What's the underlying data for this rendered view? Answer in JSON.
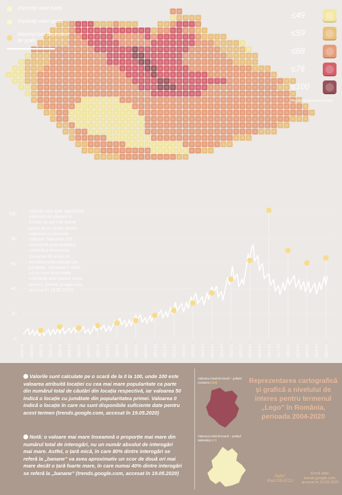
{
  "legend_top": {
    "items": [
      {
        "label": "Explicații valori hartă",
        "color": "#fdf4d0"
      },
      {
        "label": "Explicații valori grafic",
        "color": "#fdf4d0"
      },
      {
        "label": "Maximul lunii decembrie pe grafic",
        "color": "#f7dc8e"
      }
    ]
  },
  "scale": {
    "items": [
      {
        "label": "≤49",
        "color": "#f3e7a3"
      },
      {
        "label": "≤59",
        "color": "#eac181"
      },
      {
        "label": "≤68",
        "color": "#e69e7b"
      },
      {
        "label": "≤76",
        "color": "#d5616d"
      },
      {
        "label": "≤100",
        "color": "#98525a"
      }
    ],
    "caption": "Procentul interesului (valori)"
  },
  "map": {
    "background_color": "#ece9e6",
    "cells": [
      "..........................XX........................",
      "..........................ABBBB.....................",
      "........BBCDDDBBBCBBB...BBCDDDC.....................",
      ".......BBBCDDDDDDDDDDDDBCCDDCCBB....................",
      "......BBBBCCDDDDDCCCCCDCDDDDDDCBBBB.................",
      ".....BBBBBCCCDDDDDCCCCCDDDDDDDCCCBBBBA..............",
      "....CCCCCCCCCCDDDDDDEDDDDDDDDCCCCCBBBBA.............",
      "...ABBBCCCCCCCCCDDDDEEDDDDDDCCCCCCCBBBBB............",
      "..ABBBBCCCCCCCCCDDDDDEEDDDDDCCCCCCCCBBBB............",
      ".AABBBCCCCCCCCCCCCDDDDEEDDDDDCCCCCCCCCCBBB..........",
      "AAABBCCCCCCCCCCCCCCDDDDEDDDDDDDDCCCCCCCCCCB.........",
      ".AABBCCCCCCCCCCCCCCCDDDDEEDDDDDDDDDCCCCCCCCCBB......",
      "..AABCCCCCCCCCCCCCCCCDDDEEEDDDDDCCCCCCCCCCCBB.......",
      "...ABCCCCCCCCCCCCCCCCCCDDDDDDDDCCCCCCCCCCCCCCB......",
      "....BCCCCCCCAAAAAACCCCCCCCCCCCCCCCCCCCCCCCCCCCB.....",
      ".....BCCCCCAAAAAAAAACCCCCCCCCCCCCCCCCCCCCCCCCCCB....",
      "......BBCCAAAAAAAAAAACCCCCCCCCCCCCCCCCCCCCCCCCCCB...",
      ".......BCCAAAAAAAAAAAACCCCCCCCCCCCCCCCCCCCCCCBBB....",
      "........BBCAAAAAAAAAAACCCCCCCCCCCCCCCCCCCCCBB.......",
      ".........BBCCAAAAAAAAACCCCCCCCCCCCCCCCCCBBB..........",
      "..........BCCCCCAAAAAAACCCCCCCCCCCCCBBB.............",
      "...........BBCCCCCCAAAAAAAAACCCCCCBB................",
      "............BBBCCCCCCCCAAAAAACCBB...................",
      "..............BBBBCCCCCCCCCBB......................."
    ]
  },
  "chart_data": {
    "type": "line",
    "title": "",
    "xlabel": "",
    "ylabel": "",
    "ylim": [
      0,
      100
    ],
    "yticks": [
      "0",
      "20",
      "40",
      "60",
      "80",
      "100"
    ],
    "x": [
      "2004-01",
      "2004-07",
      "2005-01",
      "2005-07",
      "2006-01",
      "2006-07",
      "2007-01",
      "2007-07",
      "2008-01",
      "2008-07",
      "2009-01",
      "2009-07",
      "2010-01",
      "2010-07",
      "2011-01",
      "2011-07",
      "2012-01",
      "2012-07",
      "2013-01",
      "2013-07",
      "2014-01",
      "2014-07",
      "2015-01",
      "2015-07",
      "2016-01",
      "2016-07",
      "2017-01",
      "2017-07",
      "2018-01",
      "2018-07",
      "2019-01",
      "2019-07",
      "2020-01"
    ],
    "series": [
      {
        "values": [
          6,
          4,
          5,
          4,
          7,
          5,
          8,
          6,
          9,
          8,
          13,
          12,
          16,
          14,
          20,
          18,
          26,
          23,
          34,
          28,
          40,
          35,
          52,
          44,
          70,
          58,
          44,
          38,
          48,
          42,
          42,
          38,
          50
        ]
      }
    ],
    "december_peaks": [
      {
        "x": "2004-12",
        "y": 4
      },
      {
        "x": "2005-12",
        "y": 7
      },
      {
        "x": "2006-12",
        "y": 6
      },
      {
        "x": "2007-12",
        "y": 8
      },
      {
        "x": "2008-12",
        "y": 10
      },
      {
        "x": "2009-12",
        "y": 12
      },
      {
        "x": "2010-12",
        "y": 16
      },
      {
        "x": "2011-12",
        "y": 20
      },
      {
        "x": "2012-12",
        "y": 26
      },
      {
        "x": "2013-12",
        "y": 34
      },
      {
        "x": "2014-12",
        "y": 45
      },
      {
        "x": "2015-12",
        "y": 60
      },
      {
        "x": "2016-12",
        "y": 100
      },
      {
        "x": "2017-12",
        "y": 68
      },
      {
        "x": "2018-12",
        "y": 58
      },
      {
        "x": "2019-12",
        "y": 62
      }
    ],
    "note": "Valorile care apar reprezintă interesul de căutare în funcție de cel mai ridicat punct de pe grafic pentru regiunea și perioada indicate. Valoarea 100 reprezintă popularitatea maximă a termenului. Valoarea 50 arată că termenul este popular pe jumătate. Valoarea 0 arată că nu sunt disponibile suficiente date pentru acest termen. (trends.google.com, accesat în 19.05.2020)"
  },
  "notes": {
    "note1": "Valorile sunt calculate pe o scară de la 0 la 100, unde 100 este valoarea atribuită locației cu cea mai mare popularitate ca parte din numărul total de căutări din locația respectivă, iar valoarea 50 indică o locație cu jumătate din popularitatea primei. Valoarea 0 indică o locație în care nu sunt disponibile suficiente date pentru acest termen (trends.google.com, accesat în 19.05.2020)",
    "note2": "Notă: o valoare mai mare înseamnă o proporție mai mare din numărul total de interogări, nu un număr absolut de interogări mai mare. Astfel, o țară mică, în care 80% dintre interogări se referă la „banane” va avea aproximativ un scor de două ori mai mare decât o țară foarte mare, în care numai 40% dintre interogări se referă la „banane” (trends.google.com, accesat în 19.05.2020)"
  },
  "county_max": {
    "label": "Valoarea maximă lunară",
    "name": "județul Covasna",
    "value": "(100)",
    "color": "#9b4c58"
  },
  "county_min": {
    "label": "Valoarea minimă lunară",
    "name": "județul Mehedinți",
    "value": "(47)",
    "color": "#f6f0c0"
  },
  "title": "Reprezentarea cartografică și grafică a nivelului de interes pentru termenul „Lego” în România, perioada 2004-2020",
  "author": {
    "label": "Autor:",
    "name": "Raul DEATCU"
  },
  "source": {
    "label": "Sursă date:",
    "text": "trends.google.com, accesat în 19.05.2020"
  }
}
